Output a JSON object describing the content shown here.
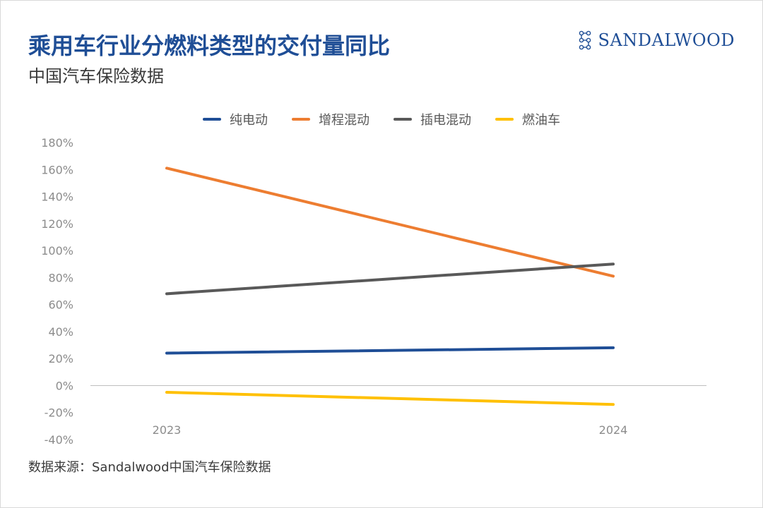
{
  "header": {
    "title": "乘用车行业分燃料类型的交付量同比",
    "subtitle": "中国汽车保险数据"
  },
  "brand": {
    "name": "SANDALWOOD",
    "color": "#1f4e96"
  },
  "source": "数据来源：Sandalwood中国汽车保险数据",
  "chart_data": {
    "type": "line",
    "x": [
      "2023",
      "2024"
    ],
    "series": [
      {
        "name": "纯电动",
        "values": [
          24,
          28
        ],
        "color": "#1f4e96"
      },
      {
        "name": "增程混动",
        "values": [
          161,
          81
        ],
        "color": "#ed7d31"
      },
      {
        "name": "插电混动",
        "values": [
          68,
          90
        ],
        "color": "#595959"
      },
      {
        "name": "燃油车",
        "values": [
          -5,
          -14
        ],
        "color": "#ffc000"
      }
    ],
    "y_ticks": [
      "180%",
      "160%",
      "140%",
      "120%",
      "100%",
      "80%",
      "60%",
      "40%",
      "20%",
      "0%",
      "-20%",
      "-40%"
    ],
    "ylim": [
      -40,
      180
    ],
    "y_unit": "%",
    "legend_position": "top-center",
    "grid": false
  }
}
